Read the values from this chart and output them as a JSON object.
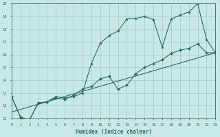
{
  "xlabel": "Humidex (Indice chaleur)",
  "bg_color": "#c8e8e8",
  "grid_color": "#a0c8c8",
  "line_color": "#2a6b60",
  "xmin": 0,
  "xmax": 23,
  "ymin": 11,
  "ymax": 20,
  "line1_x": [
    0,
    1,
    2,
    3,
    4,
    5,
    6,
    7,
    8,
    9,
    10,
    11,
    12,
    13,
    14,
    15,
    16,
    17,
    18,
    19,
    20,
    21,
    22,
    23
  ],
  "line1_y": [
    12.7,
    11.1,
    10.85,
    12.2,
    12.3,
    12.7,
    12.6,
    12.7,
    13.0,
    15.3,
    16.9,
    17.5,
    17.85,
    18.8,
    18.85,
    19.0,
    18.75,
    16.6,
    18.8,
    19.1,
    19.35,
    20.0,
    17.2,
    16.15
  ],
  "line2_x": [
    0,
    23
  ],
  "line2_y": [
    11.5,
    16.15
  ],
  "line3_x": [
    0,
    1,
    2,
    3,
    4,
    5,
    6,
    7,
    8,
    9,
    10,
    11,
    12,
    13,
    14,
    15,
    16,
    17,
    18,
    19,
    20,
    21,
    22,
    23
  ],
  "line3_y": [
    12.7,
    11.1,
    10.85,
    12.2,
    12.3,
    12.6,
    12.5,
    12.8,
    13.3,
    13.5,
    14.1,
    14.3,
    13.3,
    13.6,
    14.5,
    15.0,
    15.3,
    15.6,
    16.1,
    16.35,
    16.5,
    16.85,
    16.15,
    16.15
  ]
}
